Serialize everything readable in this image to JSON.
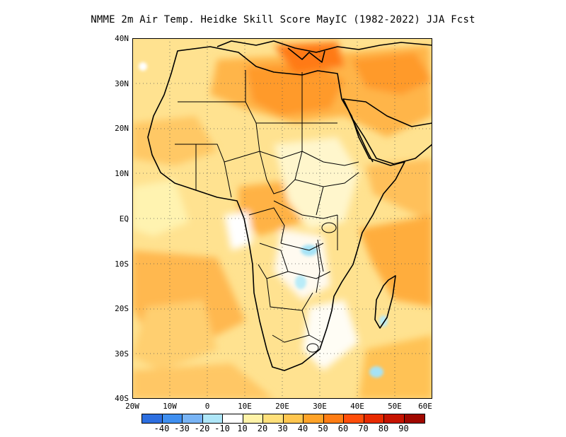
{
  "title": "NMME 2m Air Temp. Heidke Skill Score MayIC (1982-2022) JJA Fcst",
  "map": {
    "lon_range": [
      "20W",
      "60E"
    ],
    "lat_range": [
      "40S",
      "40N"
    ],
    "grid": "dotted",
    "lat_labels": [
      "40N",
      "30N",
      "20N",
      "10N",
      "EQ",
      "10S",
      "20S",
      "30S",
      "40S"
    ],
    "lon_labels": [
      "20W",
      "10W",
      "0",
      "10E",
      "20E",
      "30E",
      "40E",
      "50E",
      "60E"
    ]
  },
  "colorbar": {
    "colors": [
      "#2d6fe0",
      "#3f8ff0",
      "#78b4f5",
      "#aee6f8",
      "#ffffff",
      "#fff3a8",
      "#ffe07a",
      "#ffc64f",
      "#ffa328",
      "#ff7d14",
      "#ff4e0a",
      "#e82a00",
      "#c61300",
      "#a00800"
    ],
    "labels": [
      "-40",
      "-30",
      "-20",
      "-10",
      "10",
      "20",
      "30",
      "40",
      "50",
      "60",
      "70",
      "80",
      "90"
    ]
  }
}
